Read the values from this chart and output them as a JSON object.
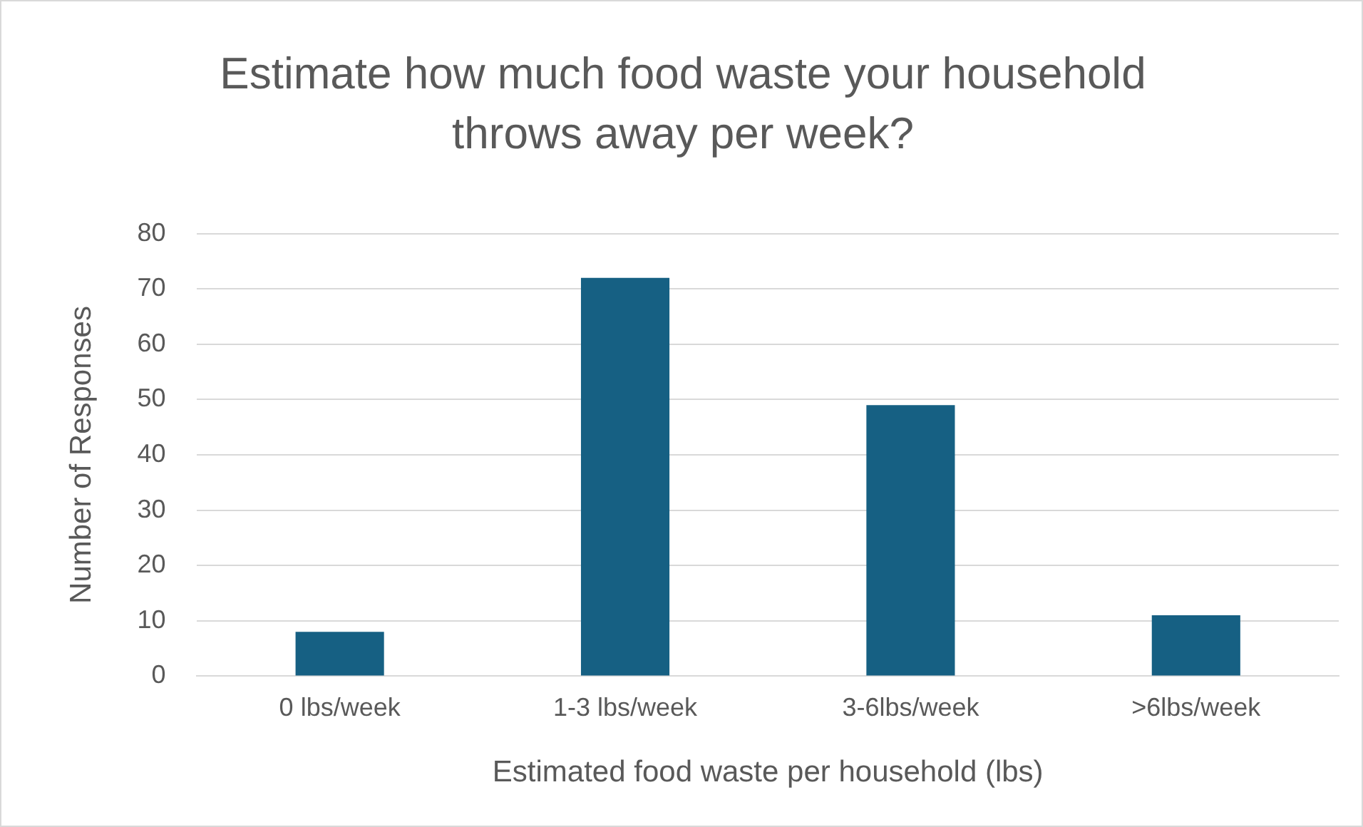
{
  "chart_data": {
    "type": "bar",
    "title": "Estimate how much food waste your household throws away per week?",
    "xlabel": "Estimated food waste per household (lbs)",
    "ylabel": "Number of Responses",
    "categories": [
      "0 lbs/week",
      "1-3 lbs/week",
      "3-6lbs/week",
      ">6lbs/week"
    ],
    "values": [
      8,
      72,
      49,
      11
    ],
    "color": "#166083",
    "ylim": [
      0,
      80
    ],
    "yticks": [
      0,
      10,
      20,
      30,
      40,
      50,
      60,
      70,
      80
    ],
    "grid": "y"
  }
}
